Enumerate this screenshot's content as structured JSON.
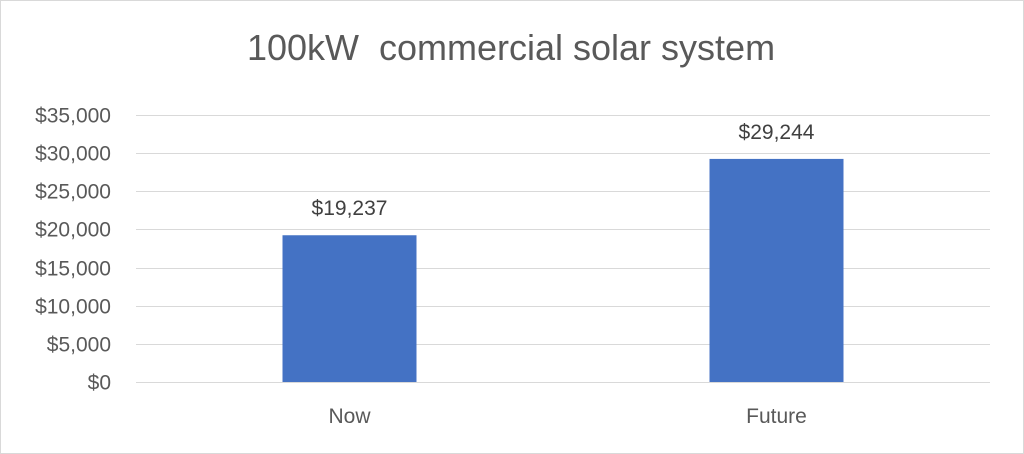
{
  "chart_data": {
    "type": "bar",
    "title": "100kW  commercial solar system",
    "categories": [
      "Now",
      "Future"
    ],
    "values": [
      19237,
      29244
    ],
    "data_labels": [
      "$19,237",
      "$29,244"
    ],
    "ylim": [
      0,
      35000
    ],
    "yticks": [
      0,
      5000,
      10000,
      15000,
      20000,
      25000,
      30000,
      35000
    ],
    "ytick_labels": [
      "$0",
      "$5,000",
      "$10,000",
      "$15,000",
      "$20,000",
      "$25,000",
      "$30,000",
      "$35,000"
    ],
    "xlabel": "",
    "ylabel": "",
    "grid": true,
    "legend": "none",
    "bar_color": "#4472c4"
  }
}
